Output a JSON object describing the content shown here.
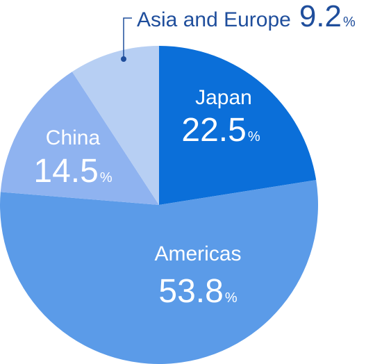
{
  "chart_data": {
    "type": "pie",
    "unit": "%",
    "categories": [
      "Japan",
      "Americas",
      "China",
      "Asia and Europe"
    ],
    "values": [
      22.5,
      53.8,
      14.5,
      9.2
    ],
    "colors": [
      "#0b6fd9",
      "#5b9be8",
      "#8fb3f0",
      "#b7cff3"
    ]
  }
}
